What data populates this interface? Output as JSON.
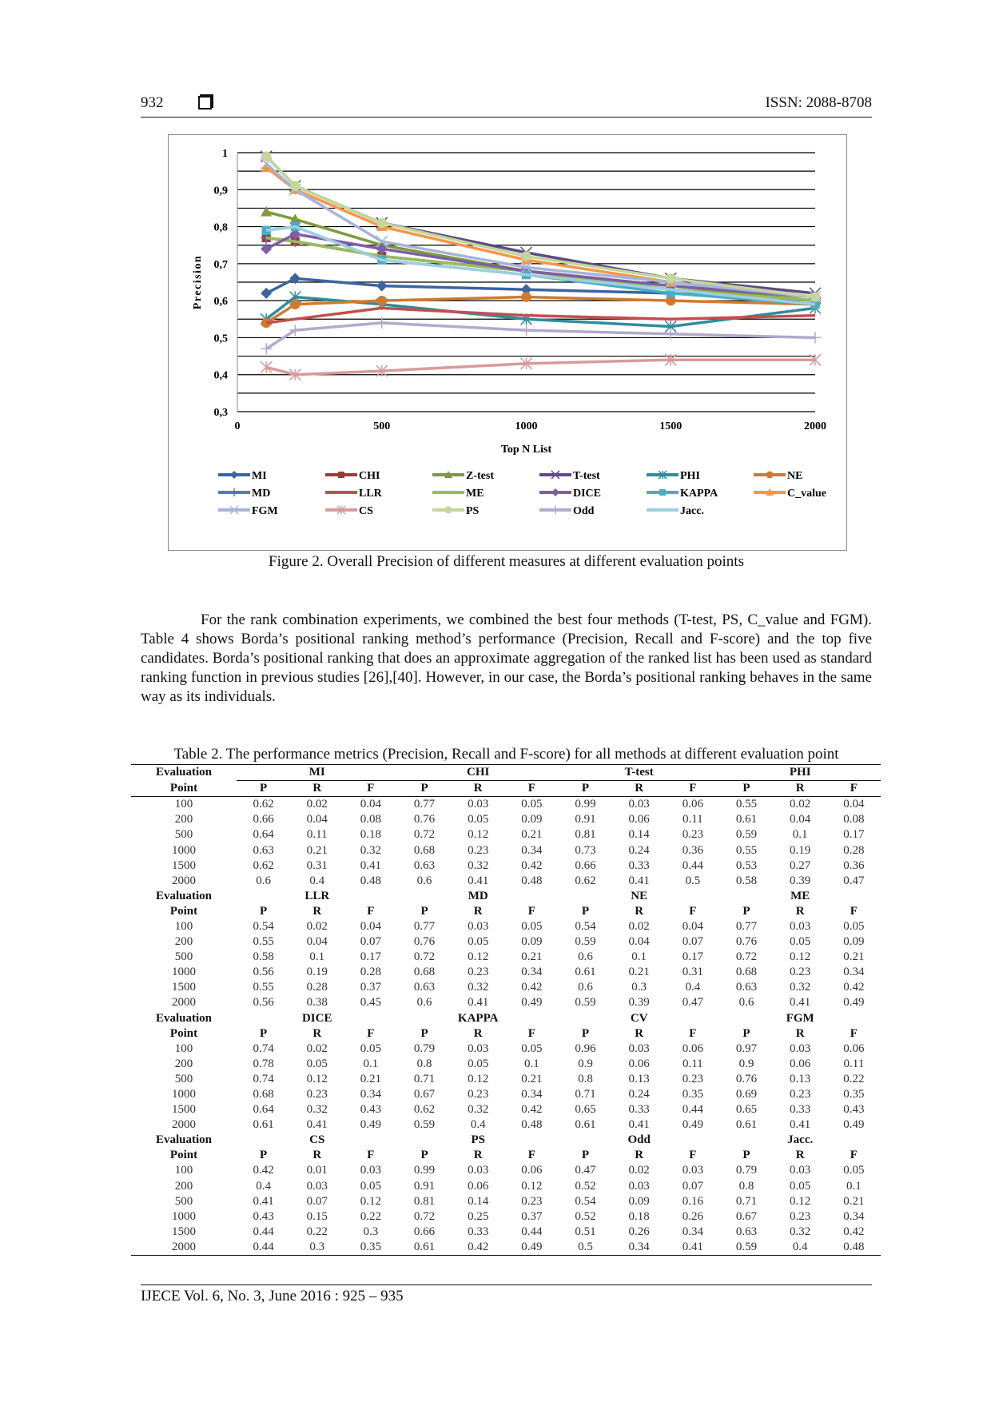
{
  "header": {
    "page_number": "932",
    "issn": "ISSN: 2088-8708"
  },
  "figure": {
    "caption": "Figure 2. Overall Precision of different measures at different evaluation points"
  },
  "chart_data": {
    "type": "line",
    "title": "",
    "xlabel": "Top N  List",
    "ylabel": "Precision",
    "x": [
      100,
      200,
      500,
      1000,
      1500,
      2000
    ],
    "xlim": [
      0,
      2000
    ],
    "ylim": [
      0.3,
      1
    ],
    "x_ticks": [
      "0",
      "500",
      "1000",
      "1500",
      "2000"
    ],
    "y_ticks": [
      "0,3",
      "0,4",
      "0,5",
      "0,6",
      "0,7",
      "0,8",
      "0,9",
      "1"
    ],
    "grid": true,
    "legend_position": "bottom",
    "series": [
      {
        "name": "MI",
        "color": "#3b64a0",
        "marker": "diamond",
        "values": [
          0.62,
          0.66,
          0.64,
          0.63,
          0.62,
          0.6
        ]
      },
      {
        "name": "CHI",
        "color": "#9e3b38",
        "marker": "square",
        "values": [
          0.77,
          0.76,
          0.72,
          0.68,
          0.63,
          0.6
        ]
      },
      {
        "name": "Z-test",
        "color": "#7f9a3a",
        "marker": "triangle",
        "values": [
          0.84,
          0.82,
          0.75,
          0.68,
          0.64,
          0.6
        ]
      },
      {
        "name": "T-test",
        "color": "#5e4a86",
        "marker": "x",
        "values": [
          0.99,
          0.91,
          0.81,
          0.73,
          0.66,
          0.62
        ]
      },
      {
        "name": "PHI",
        "color": "#2f8c9c",
        "marker": "asterisk",
        "values": [
          0.55,
          0.61,
          0.59,
          0.55,
          0.53,
          0.58
        ]
      },
      {
        "name": "NE",
        "color": "#d07a30",
        "marker": "circle",
        "values": [
          0.54,
          0.59,
          0.6,
          0.61,
          0.6,
          0.59
        ]
      },
      {
        "name": "MD",
        "color": "#4a7ebb",
        "marker": "plus",
        "values": [
          0.77,
          0.76,
          0.72,
          0.68,
          0.63,
          0.6
        ]
      },
      {
        "name": "LLR",
        "color": "#c0504d",
        "marker": "none",
        "values": [
          0.54,
          0.55,
          0.58,
          0.56,
          0.55,
          0.56
        ]
      },
      {
        "name": "ME",
        "color": "#9bbb59",
        "marker": "none",
        "values": [
          0.77,
          0.76,
          0.72,
          0.68,
          0.63,
          0.6
        ]
      },
      {
        "name": "DICE",
        "color": "#7c5fa6",
        "marker": "diamond",
        "values": [
          0.74,
          0.78,
          0.74,
          0.68,
          0.64,
          0.61
        ]
      },
      {
        "name": "KAPPA",
        "color": "#4bacc6",
        "marker": "square",
        "values": [
          0.79,
          0.8,
          0.71,
          0.67,
          0.62,
          0.59
        ]
      },
      {
        "name": "C_value",
        "color": "#f79646",
        "marker": "triangle",
        "values": [
          0.96,
          0.9,
          0.8,
          0.71,
          0.65,
          0.61
        ]
      },
      {
        "name": "FGM",
        "color": "#a5b4d8",
        "marker": "x",
        "values": [
          0.97,
          0.9,
          0.76,
          0.69,
          0.65,
          0.61
        ]
      },
      {
        "name": "CS",
        "color": "#d99a9a",
        "marker": "asterisk",
        "values": [
          0.42,
          0.4,
          0.41,
          0.43,
          0.44,
          0.44
        ]
      },
      {
        "name": "PS",
        "color": "#c3d69b",
        "marker": "circle",
        "values": [
          0.99,
          0.91,
          0.81,
          0.72,
          0.66,
          0.61
        ]
      },
      {
        "name": "Odd",
        "color": "#b3a9cc",
        "marker": "plus",
        "values": [
          0.47,
          0.52,
          0.54,
          0.52,
          0.51,
          0.5
        ]
      },
      {
        "name": "Jacc.",
        "color": "#9fcfdc",
        "marker": "none",
        "values": [
          0.79,
          0.8,
          0.71,
          0.67,
          0.63,
          0.59
        ]
      }
    ]
  },
  "paragraph": "For the rank combination experiments, we combined the best four methods (T-test, PS, C_value and FGM). Table 4 shows Borda’s positional ranking method’s performance (Precision, Recall and F-score) and the top five candidates. Borda’s positional ranking that does an approximate aggregation of the ranked list has been used as standard ranking function in previous studies [26],[40]. However, in our case, the Borda’s positional ranking behaves in the same way as its individuals.",
  "table": {
    "caption": "Table 2. The performance metrics (Precision, Recall and F-score) for all methods at different evaluation point",
    "eval_label_1": "Evaluation",
    "eval_label_2": "Point",
    "metric_labels": [
      "P",
      "R",
      "F"
    ],
    "blocks": [
      {
        "methods": [
          "MI",
          "CHI",
          "T-test",
          "PHI"
        ],
        "rows": [
          [
            "100",
            "0.62",
            "0.02",
            "0.04",
            "0.77",
            "0.03",
            "0.05",
            "0.99",
            "0.03",
            "0.06",
            "0.55",
            "0.02",
            "0.04"
          ],
          [
            "200",
            "0.66",
            "0.04",
            "0.08",
            "0.76",
            "0.05",
            "0.09",
            "0.91",
            "0.06",
            "0.11",
            "0.61",
            "0.04",
            "0.08"
          ],
          [
            "500",
            "0.64",
            "0.11",
            "0.18",
            "0.72",
            "0.12",
            "0.21",
            "0.81",
            "0.14",
            "0.23",
            "0.59",
            "0.1",
            "0.17"
          ],
          [
            "1000",
            "0.63",
            "0.21",
            "0.32",
            "0.68",
            "0.23",
            "0.34",
            "0.73",
            "0.24",
            "0.36",
            "0.55",
            "0.19",
            "0.28"
          ],
          [
            "1500",
            "0.62",
            "0.31",
            "0.41",
            "0.63",
            "0.32",
            "0.42",
            "0.66",
            "0.33",
            "0.44",
            "0.53",
            "0.27",
            "0.36"
          ],
          [
            "2000",
            "0.6",
            "0.4",
            "0.48",
            "0.6",
            "0.41",
            "0.48",
            "0.62",
            "0.41",
            "0.5",
            "0.58",
            "0.39",
            "0.47"
          ]
        ]
      },
      {
        "methods": [
          "LLR",
          "MD",
          "NE",
          "ME"
        ],
        "rows": [
          [
            "100",
            "0.54",
            "0.02",
            "0.04",
            "0.77",
            "0.03",
            "0.05",
            "0.54",
            "0.02",
            "0.04",
            "0.77",
            "0.03",
            "0.05"
          ],
          [
            "200",
            "0.55",
            "0.04",
            "0.07",
            "0.76",
            "0.05",
            "0.09",
            "0.59",
            "0.04",
            "0.07",
            "0.76",
            "0.05",
            "0.09"
          ],
          [
            "500",
            "0.58",
            "0.1",
            "0.17",
            "0.72",
            "0.12",
            "0.21",
            "0.6",
            "0.1",
            "0.17",
            "0.72",
            "0.12",
            "0.21"
          ],
          [
            "1000",
            "0.56",
            "0.19",
            "0.28",
            "0.68",
            "0.23",
            "0.34",
            "0.61",
            "0.21",
            "0.31",
            "0.68",
            "0.23",
            "0.34"
          ],
          [
            "1500",
            "0.55",
            "0.28",
            "0.37",
            "0.63",
            "0.32",
            "0.42",
            "0.6",
            "0.3",
            "0.4",
            "0.63",
            "0.32",
            "0.42"
          ],
          [
            "2000",
            "0.56",
            "0.38",
            "0.45",
            "0.6",
            "0.41",
            "0.49",
            "0.59",
            "0.39",
            "0.47",
            "0.6",
            "0.41",
            "0.49"
          ]
        ]
      },
      {
        "methods": [
          "DICE",
          "KAPPA",
          "CV",
          "FGM"
        ],
        "rows": [
          [
            "100",
            "0.74",
            "0.02",
            "0.05",
            "0.79",
            "0.03",
            "0.05",
            "0.96",
            "0.03",
            "0.06",
            "0.97",
            "0.03",
            "0.06"
          ],
          [
            "200",
            "0.78",
            "0.05",
            "0.1",
            "0.8",
            "0.05",
            "0.1",
            "0.9",
            "0.06",
            "0.11",
            "0.9",
            "0.06",
            "0.11"
          ],
          [
            "500",
            "0.74",
            "0.12",
            "0.21",
            "0.71",
            "0.12",
            "0.21",
            "0.8",
            "0.13",
            "0.23",
            "0.76",
            "0.13",
            "0.22"
          ],
          [
            "1000",
            "0.68",
            "0.23",
            "0.34",
            "0.67",
            "0.23",
            "0.34",
            "0.71",
            "0.24",
            "0.35",
            "0.69",
            "0.23",
            "0.35"
          ],
          [
            "1500",
            "0.64",
            "0.32",
            "0.43",
            "0.62",
            "0.32",
            "0.42",
            "0.65",
            "0.33",
            "0.44",
            "0.65",
            "0.33",
            "0.43"
          ],
          [
            "2000",
            "0.61",
            "0.41",
            "0.49",
            "0.59",
            "0.4",
            "0.48",
            "0.61",
            "0.41",
            "0.49",
            "0.61",
            "0.41",
            "0.49"
          ]
        ]
      },
      {
        "methods": [
          "CS",
          "PS",
          "Odd",
          "Jacc."
        ],
        "rows": [
          [
            "100",
            "0.42",
            "0.01",
            "0.03",
            "0.99",
            "0.03",
            "0.06",
            "0.47",
            "0.02",
            "0.03",
            "0.79",
            "0.03",
            "0.05"
          ],
          [
            "200",
            "0.4",
            "0.03",
            "0.05",
            "0.91",
            "0.06",
            "0.12",
            "0.52",
            "0.03",
            "0.07",
            "0.8",
            "0.05",
            "0.1"
          ],
          [
            "500",
            "0.41",
            "0.07",
            "0.12",
            "0.81",
            "0.14",
            "0.23",
            "0.54",
            "0.09",
            "0.16",
            "0.71",
            "0.12",
            "0.21"
          ],
          [
            "1000",
            "0.43",
            "0.15",
            "0.22",
            "0.72",
            "0.25",
            "0.37",
            "0.52",
            "0.18",
            "0.26",
            "0.67",
            "0.23",
            "0.34"
          ],
          [
            "1500",
            "0.44",
            "0.22",
            "0.3",
            "0.66",
            "0.33",
            "0.44",
            "0.51",
            "0.26",
            "0.34",
            "0.63",
            "0.32",
            "0.42"
          ],
          [
            "2000",
            "0.44",
            "0.3",
            "0.35",
            "0.61",
            "0.42",
            "0.49",
            "0.5",
            "0.34",
            "0.41",
            "0.59",
            "0.4",
            "0.48"
          ]
        ]
      }
    ]
  },
  "footer": {
    "text": "IJECE  Vol. 6, No. 3, June 2016 :  925 – 935"
  }
}
